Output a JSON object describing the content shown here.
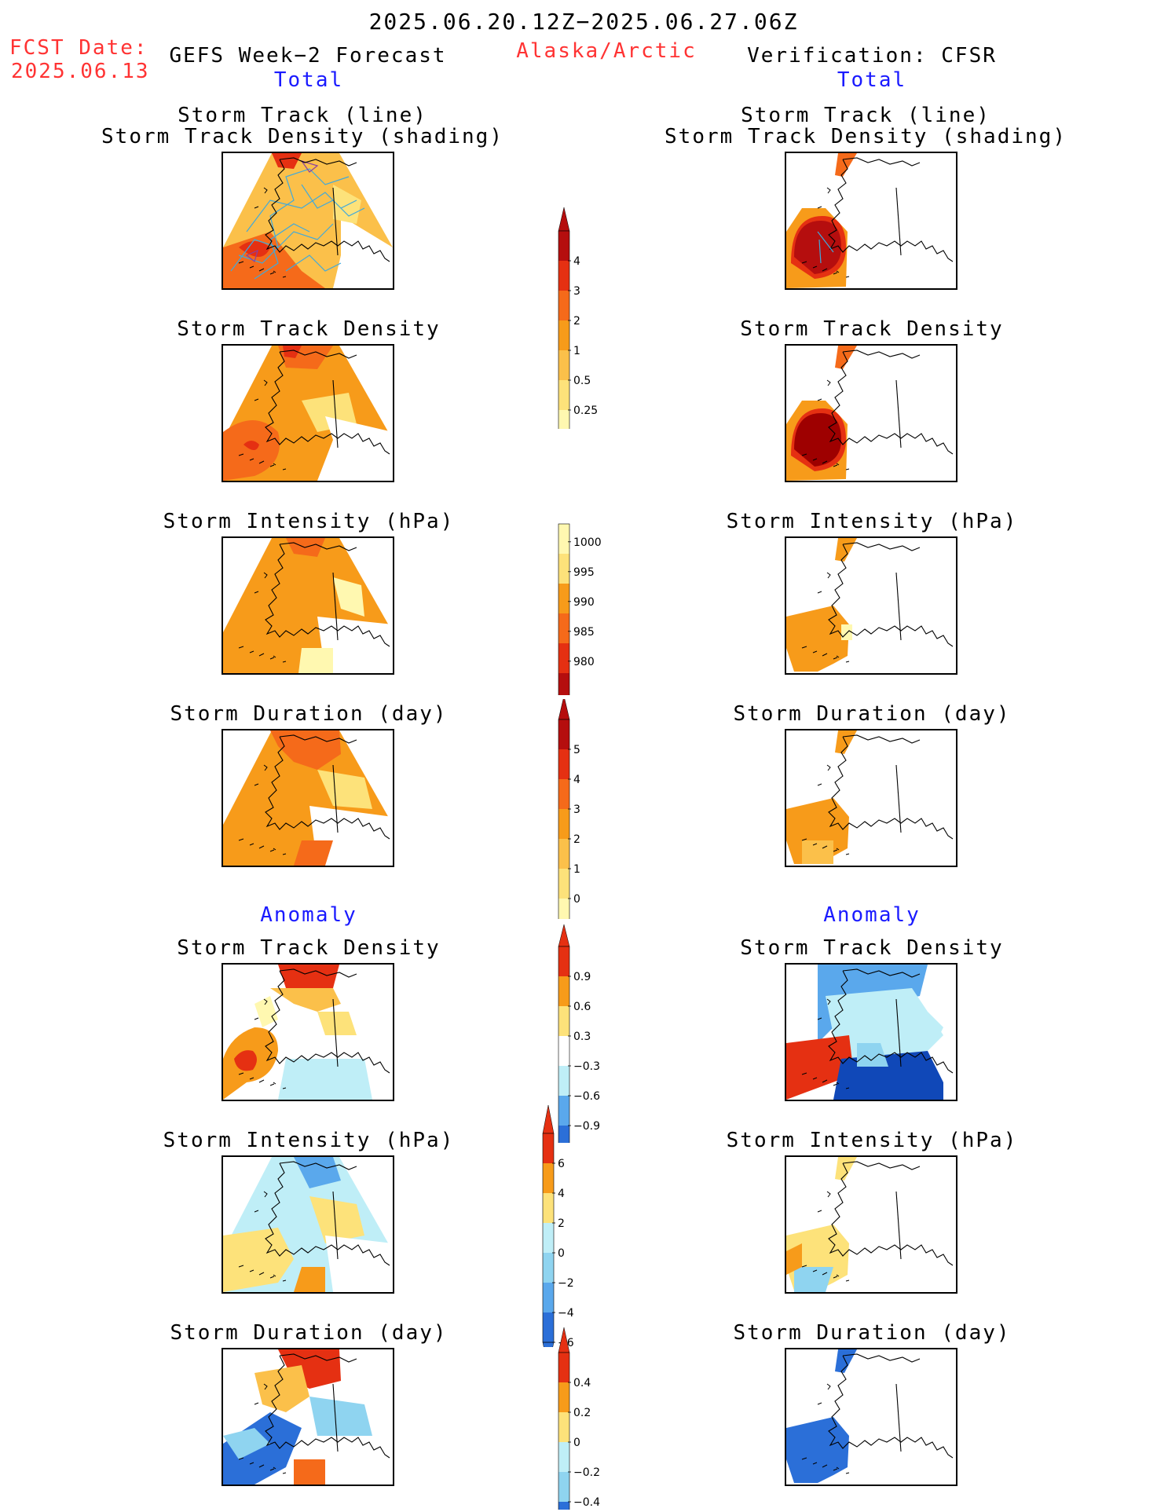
{
  "header": {
    "period": "2025.06.20.12Z−2025.06.27.06Z",
    "fcst_label": "FCST Date:",
    "fcst_date": "2025.06.13",
    "left_title": "GEFS Week−2 Forecast",
    "region": "Alaska/Arctic",
    "right_title": "Verification: CFSR",
    "total_left": "Total",
    "total_right": "Total",
    "anomaly_left": "Anomaly",
    "anomaly_right": "Anomaly"
  },
  "panels": {
    "p1_title_line1": "Storm Track (line)",
    "p1_title_line2": "Storm Track Density (shading)",
    "density": "Storm Track Density",
    "intensity": "Storm Intensity (hPa)",
    "duration": "Storm Duration (day)"
  },
  "colorbars": {
    "density_total": [
      "4",
      "3",
      "2",
      "1",
      "0.5",
      "0.25"
    ],
    "intensity_total": [
      "1000",
      "995",
      "990",
      "985",
      "980"
    ],
    "duration_total": [
      "5",
      "4",
      "3",
      "2",
      "1",
      "0"
    ],
    "density_anom": [
      "0.9",
      "0.6",
      "0.3",
      "−0.3",
      "−0.6",
      "−0.9"
    ],
    "intensity_anom": [
      "6",
      "4",
      "2",
      "0",
      "−2",
      "−4",
      "−6"
    ],
    "duration_anom": [
      "0.4",
      "0.2",
      "0",
      "−0.2",
      "−0.4"
    ]
  },
  "colors": {
    "title_red": "#ff3333",
    "title_blue": "#1a1aff",
    "warm": [
      "#fff8b0",
      "#fde27a",
      "#fbc04a",
      "#f79b1a",
      "#f56a1a",
      "#e53012",
      "#b50e0e"
    ],
    "cool": [
      "#bfeef7",
      "#8fd4f0",
      "#5aa8ec",
      "#2b6fd8",
      "#1048b8"
    ]
  }
}
